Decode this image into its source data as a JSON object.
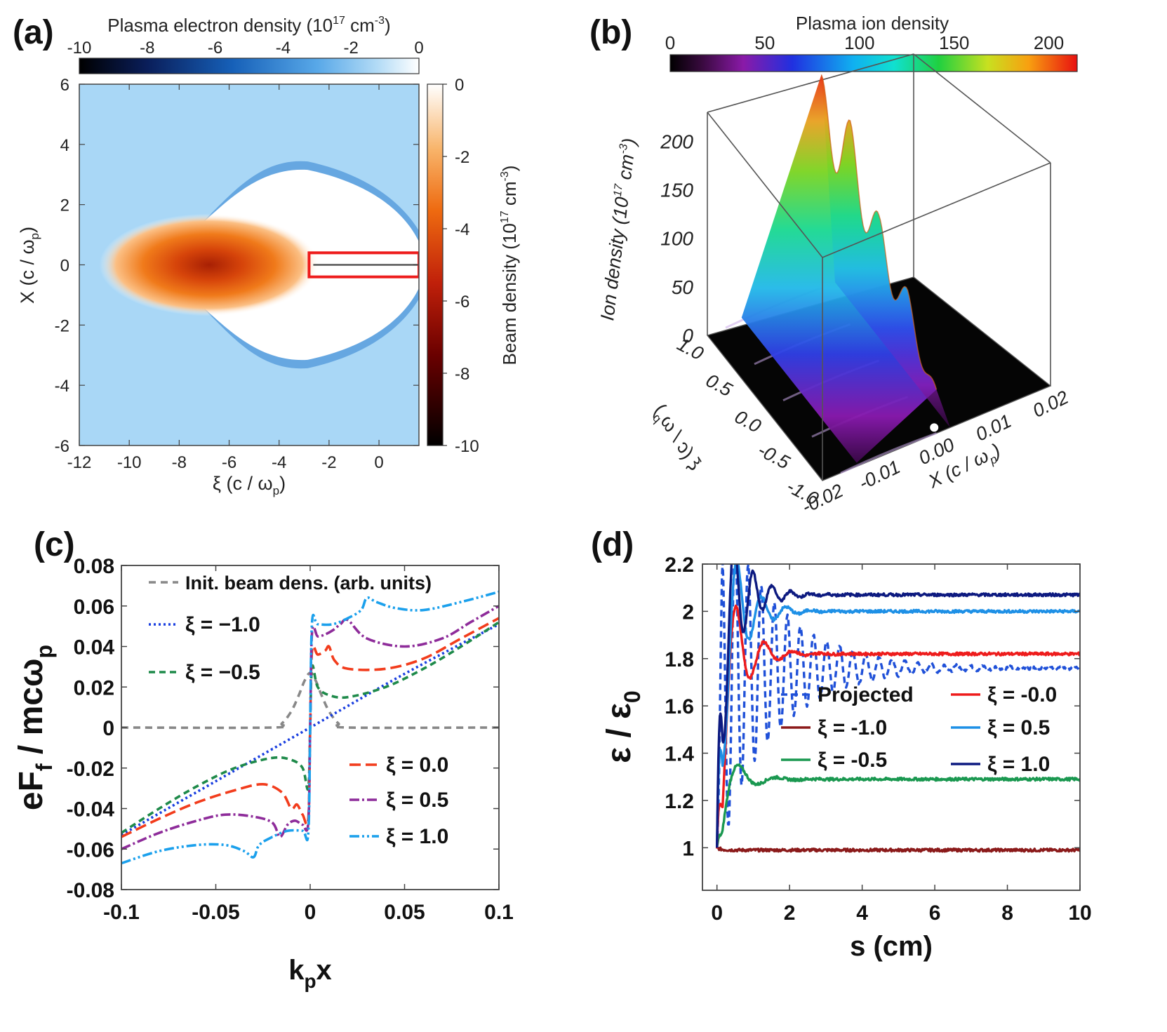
{
  "panel_labels": [
    "(a)",
    "(b)",
    "(c)",
    "(d)"
  ],
  "colors": {
    "red": "#ee1c1c",
    "dark_red": "#8b1a1a",
    "green": "#1a9850",
    "light_blue": "#1e90e6",
    "navy": "#0d1a80",
    "blue_dash": "#1f50d8",
    "gray_dash": "#888888",
    "purple": "#8e2c9a",
    "orange_red": "#f23c1c",
    "sky": "#1ba0ec",
    "dot_blue": "#1a3fe0",
    "green_dash": "#1e8a4a",
    "beam_orange": "#e85d10",
    "plasma_blue": "#a7d5f5",
    "frame": "#444444"
  },
  "chart_data": [
    {
      "id": "a",
      "type": "heatmap",
      "title": "(a)",
      "xlabel": "ξ (c / ω",
      "xlabel_sub": "p",
      "xlabel_end": ")",
      "ylabel": "X (c / ω",
      "ylabel_sub": "p",
      "ylabel_end": ")",
      "xlim": [
        -12,
        1.6
      ],
      "ylim": [
        -6,
        6
      ],
      "xticks": [
        "-12",
        "-10",
        "-8",
        "-6",
        "-4",
        "-2",
        "0"
      ],
      "xtick_values": [
        -12,
        -10,
        -8,
        -6,
        -4,
        -2,
        0
      ],
      "yticks": [
        "6",
        "4",
        "2",
        "0",
        "-2",
        "-4",
        "-6"
      ],
      "ytick_values": [
        6,
        4,
        2,
        0,
        -2,
        -4,
        -6
      ],
      "colorbar_top": {
        "label": "Plasma electron density (10",
        "label_sup": "17",
        "label_unit": " cm",
        "label_sup2": "-3",
        "label_end": ")",
        "ticks": [
          "-10",
          "-8",
          "-6",
          "-4",
          "-2",
          "0"
        ],
        "range": [
          -10,
          0
        ]
      },
      "colorbar_right": {
        "label": "Beam density (10",
        "label_sup": "17",
        "label_unit": " cm",
        "label_sup2": "-3",
        "label_end": ")",
        "ticks": [
          "0",
          "-2",
          "-4",
          "-6",
          "-8",
          "-10"
        ],
        "range": [
          -10,
          0
        ]
      },
      "bubble": {
        "center_xi": -3.7,
        "half_length": 5.6,
        "radius": 3.2
      },
      "beam": {
        "center_xi": -6.8,
        "sigma_xi": 2.2,
        "sigma_x": 1.0
      },
      "highlight_box": {
        "xi": [
          -2.8,
          1.6
        ],
        "x": [
          -0.4,
          0.4
        ]
      }
    },
    {
      "id": "b",
      "type": "surface3d",
      "title": "(b)",
      "colorbar": {
        "label": "Plasma ion density",
        "ticks": [
          "0",
          "50",
          "100",
          "150",
          "200"
        ],
        "range": [
          0,
          215
        ]
      },
      "zlabel": "Ion density (10",
      "zlabel_sup": "17",
      "zlabel_unit": " cm",
      "zlabel_sup2": "-3",
      "zlabel_end": ")",
      "zticks": [
        "0",
        "50",
        "100",
        "150",
        "200"
      ],
      "xi_label": "ξ (c / ω",
      "xi_label_sub": "p",
      "xi_label_end": ")",
      "xi_ticks": [
        "1.0",
        "0.5",
        "0.0",
        "-0.5",
        "-1.0"
      ],
      "x_label": "X (c / ω",
      "x_label_sub": "p",
      "x_label_end": ")",
      "x_ticks": [
        "-0.02",
        "-0.01",
        "0.00",
        "0.01",
        "0.02"
      ],
      "peaks": [
        {
          "xi": -1.0,
          "value": 45
        },
        {
          "xi": -0.5,
          "value": 110
        },
        {
          "xi": 0.0,
          "value": 150
        },
        {
          "xi": 0.5,
          "value": 210
        },
        {
          "xi": 1.0,
          "value": 220
        }
      ]
    },
    {
      "id": "c",
      "type": "line",
      "title": "(c)",
      "xlabel": "k",
      "xlabel_sub": "p",
      "xlabel_end": "x",
      "ylabel": "eF",
      "ylabel_sub": "f",
      "ylabel_mid": " / mcω",
      "ylabel_sub2": "p",
      "xlim": [
        -0.1,
        0.1
      ],
      "ylim": [
        -0.08,
        0.08
      ],
      "xticks": [
        "-0.1",
        "-0.05",
        "0",
        "0.05",
        "0.1"
      ],
      "xtick_values": [
        -0.1,
        -0.05,
        0,
        0.05,
        0.1
      ],
      "yticks": [
        "0.08",
        "0.06",
        "0.04",
        "0.02",
        "0",
        "-0.02",
        "-0.04",
        "-0.06",
        "-0.08"
      ],
      "ytick_values": [
        0.08,
        0.06,
        0.04,
        0.02,
        0,
        -0.02,
        -0.04,
        -0.06,
        -0.08
      ],
      "series": [
        {
          "name": "Init. beam dens. (arb. units)",
          "style": "gray_dash",
          "dash": "10,7",
          "points": [
            [
              -0.1,
              0
            ],
            [
              -0.02,
              0
            ],
            [
              -0.015,
              0.002
            ],
            [
              -0.01,
              0.008
            ],
            [
              -0.006,
              0.016
            ],
            [
              -0.003,
              0.023
            ],
            [
              0,
              0.027
            ],
            [
              0.003,
              0.023
            ],
            [
              0.006,
              0.016
            ],
            [
              0.01,
              0.008
            ],
            [
              0.015,
              0.002
            ],
            [
              0.02,
              0
            ],
            [
              0.1,
              0
            ]
          ]
        },
        {
          "name": "ξ = −1.0",
          "style": "dot_blue",
          "dash": "3,4",
          "points": [
            [
              -0.1,
              -0.053
            ],
            [
              -0.05,
              -0.0265
            ],
            [
              0,
              0
            ],
            [
              0.05,
              0.0265
            ],
            [
              0.1,
              0.051
            ]
          ]
        },
        {
          "name": "ξ = −0.5",
          "style": "green_dash",
          "dash": "9,6",
          "points": [
            [
              -0.1,
              -0.052
            ],
            [
              -0.08,
              -0.04
            ],
            [
              -0.06,
              -0.029
            ],
            [
              -0.04,
              -0.02
            ],
            [
              -0.02,
              -0.015
            ],
            [
              -0.01,
              -0.016
            ],
            [
              -0.004,
              -0.02
            ],
            [
              -0.001,
              -0.03
            ],
            [
              0,
              0
            ],
            [
              0.001,
              0.03
            ],
            [
              0.004,
              0.02
            ],
            [
              0.01,
              0.016
            ],
            [
              0.02,
              0.015
            ],
            [
              0.04,
              0.02
            ],
            [
              0.06,
              0.029
            ],
            [
              0.08,
              0.04
            ],
            [
              0.1,
              0.052
            ]
          ]
        },
        {
          "name": "ξ = 0.0",
          "style": "orange_red",
          "dash": "16,7",
          "points": [
            [
              -0.1,
              -0.054
            ],
            [
              -0.08,
              -0.045
            ],
            [
              -0.06,
              -0.037
            ],
            [
              -0.04,
              -0.031
            ],
            [
              -0.025,
              -0.028
            ],
            [
              -0.015,
              -0.032
            ],
            [
              -0.01,
              -0.04
            ],
            [
              -0.007,
              -0.038
            ],
            [
              -0.004,
              -0.043
            ],
            [
              -0.001,
              -0.045
            ],
            [
              0,
              0
            ],
            [
              0.001,
              0.038
            ],
            [
              0.004,
              0.036
            ],
            [
              0.008,
              0.038
            ],
            [
              0.01,
              0.04
            ],
            [
              0.013,
              0.033
            ],
            [
              0.02,
              0.029
            ],
            [
              0.04,
              0.029
            ],
            [
              0.06,
              0.034
            ],
            [
              0.08,
              0.044
            ],
            [
              0.1,
              0.054
            ]
          ]
        },
        {
          "name": "ξ = 0.5",
          "style": "purple",
          "dash": "14,4,3,4",
          "points": [
            [
              -0.1,
              -0.06
            ],
            [
              -0.08,
              -0.052
            ],
            [
              -0.06,
              -0.046
            ],
            [
              -0.045,
              -0.043
            ],
            [
              -0.03,
              -0.044
            ],
            [
              -0.02,
              -0.047
            ],
            [
              -0.016,
              -0.054
            ],
            [
              -0.012,
              -0.048
            ],
            [
              -0.008,
              -0.046
            ],
            [
              -0.004,
              -0.048
            ],
            [
              -0.001,
              -0.047
            ],
            [
              0,
              0
            ],
            [
              0.001,
              0.047
            ],
            [
              0.004,
              0.045
            ],
            [
              0.008,
              0.046
            ],
            [
              0.012,
              0.048
            ],
            [
              0.016,
              0.051
            ],
            [
              0.02,
              0.053
            ],
            [
              0.03,
              0.044
            ],
            [
              0.05,
              0.04
            ],
            [
              0.07,
              0.044
            ],
            [
              0.085,
              0.052
            ],
            [
              0.1,
              0.06
            ]
          ]
        },
        {
          "name": "ξ = 1.0",
          "style": "sky",
          "dash": "14,4,3,4,3,4",
          "points": [
            [
              -0.1,
              -0.067
            ],
            [
              -0.08,
              -0.061
            ],
            [
              -0.06,
              -0.058
            ],
            [
              -0.045,
              -0.058
            ],
            [
              -0.035,
              -0.061
            ],
            [
              -0.03,
              -0.064
            ],
            [
              -0.027,
              -0.058
            ],
            [
              -0.02,
              -0.054
            ],
            [
              -0.012,
              -0.051
            ],
            [
              -0.004,
              -0.051
            ],
            [
              -0.001,
              -0.052
            ],
            [
              0,
              0
            ],
            [
              0.001,
              0.052
            ],
            [
              0.004,
              0.051
            ],
            [
              0.012,
              0.051
            ],
            [
              0.02,
              0.054
            ],
            [
              0.027,
              0.058
            ],
            [
              0.03,
              0.064
            ],
            [
              0.035,
              0.062
            ],
            [
              0.045,
              0.059
            ],
            [
              0.06,
              0.058
            ],
            [
              0.08,
              0.062
            ],
            [
              0.1,
              0.067
            ]
          ]
        }
      ]
    },
    {
      "id": "d",
      "type": "line",
      "title": "(d)",
      "xlabel": "s (cm)",
      "ylabel": "ε / ε",
      "ylabel_sub": "0",
      "xlim": [
        -0.4,
        10
      ],
      "ylim": [
        0.82,
        2.2
      ],
      "xticks": [
        "0",
        "2",
        "4",
        "6",
        "8",
        "10"
      ],
      "xtick_values": [
        0,
        2,
        4,
        6,
        8,
        10
      ],
      "yticks": [
        "2.2",
        "2",
        "1.8",
        "1.6",
        "1.4",
        "1.2",
        "1"
      ],
      "ytick_values": [
        2.2,
        2.0,
        1.8,
        1.6,
        1.4,
        1.2,
        1.0
      ],
      "series": [
        {
          "name": "Projected",
          "style": "blue_dash",
          "dash": "9,6",
          "final": 1.76,
          "start": 1.0,
          "osc": {
            "amp": 0.75,
            "decay": 1.6,
            "period": 0.36,
            "phase": -0.4,
            "offset": 0
          }
        },
        {
          "name": "ξ = -1.0",
          "style": "dark_red",
          "dash": "",
          "final": 0.99,
          "start": 1.0,
          "osc": {
            "amp": 0.0,
            "decay": 1.0,
            "period": 1.0,
            "phase": 0,
            "offset": 0
          }
        },
        {
          "name": "ξ = -0.5",
          "style": "green",
          "dash": "",
          "final": 1.29,
          "start": 1.0,
          "osc": {
            "amp": 0.2,
            "decay": 0.5,
            "period": 1.05,
            "phase": 0.1,
            "offset": 0
          }
        },
        {
          "name": "ξ = -0.0",
          "style": "red",
          "dash": "",
          "final": 1.82,
          "start": 1.0,
          "osc": {
            "amp": 0.55,
            "decay": 0.55,
            "period": 0.78,
            "phase": 0.15,
            "offset": 0
          }
        },
        {
          "name": "ξ = 0.5",
          "style": "light_blue",
          "dash": "",
          "final": 2.0,
          "start": 1.0,
          "osc": {
            "amp": 0.6,
            "decay": 0.55,
            "period": 0.68,
            "phase": 0.22,
            "offset": 0
          }
        },
        {
          "name": "ξ = 1.0",
          "style": "navy",
          "dash": "",
          "final": 2.07,
          "start": 1.0,
          "osc": {
            "amp": 0.6,
            "decay": 0.55,
            "period": 0.52,
            "phase": 0.22,
            "offset": 0
          }
        }
      ]
    }
  ]
}
